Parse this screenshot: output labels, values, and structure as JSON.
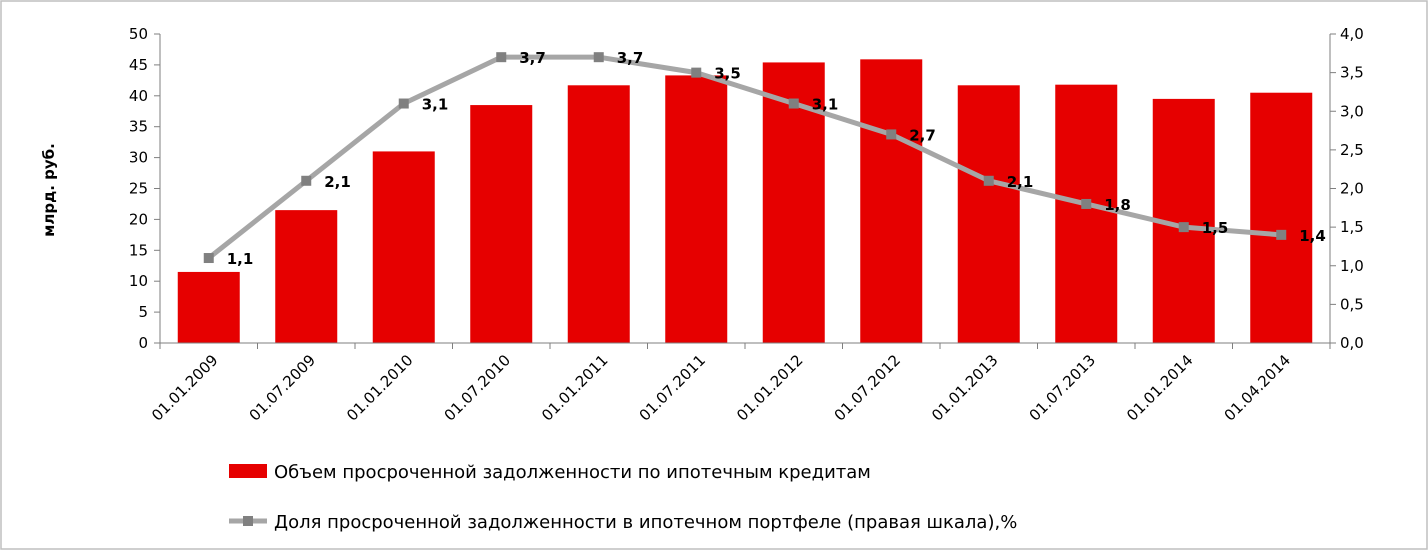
{
  "chart_data": {
    "type": "bar",
    "categories": [
      "01.01.2009",
      "01.07.2009",
      "01.01.2010",
      "01.07.2010",
      "01.01.2011",
      "01.07.2011",
      "01.01.2012",
      "01.07.2012",
      "01.01.2013",
      "01.07.2013",
      "01.01.2014",
      "01.04.2014"
    ],
    "series": [
      {
        "name": "Объем просроченной задолженности по ипотечным кредитам",
        "type": "bar",
        "axis": "left",
        "color": "#e60000",
        "values": [
          11.5,
          21.5,
          31.0,
          38.5,
          41.7,
          43.3,
          45.4,
          45.9,
          41.7,
          41.8,
          39.5,
          40.5
        ]
      },
      {
        "name": "Доля просроченной задолженности в ипотечном портфеле (правая шкала),%",
        "type": "line",
        "axis": "right",
        "color": "#a6a6a6",
        "marker_color": "#808080",
        "values": [
          1.1,
          2.1,
          3.1,
          3.7,
          3.7,
          3.5,
          3.1,
          2.7,
          2.1,
          1.8,
          1.5,
          1.4
        ],
        "data_labels": [
          "1,1",
          "2,1",
          "3,1",
          "3,7",
          "3,7",
          "3,5",
          "3,1",
          "2,7",
          "2,1",
          "1,8",
          "1,5",
          "1,4"
        ]
      }
    ],
    "ylabel": "млрд. руб.",
    "ylim": [
      0,
      50
    ],
    "y_ticks": [
      "0",
      "5",
      "10",
      "15",
      "20",
      "25",
      "30",
      "35",
      "40",
      "45",
      "50"
    ],
    "y2lim": [
      0,
      4
    ],
    "y2_ticks": [
      "0,0",
      "0,5",
      "1,0",
      "1,5",
      "2,0",
      "2,5",
      "3,0",
      "3,5",
      "4,0"
    ],
    "grid": false,
    "legend_position": "bottom"
  }
}
